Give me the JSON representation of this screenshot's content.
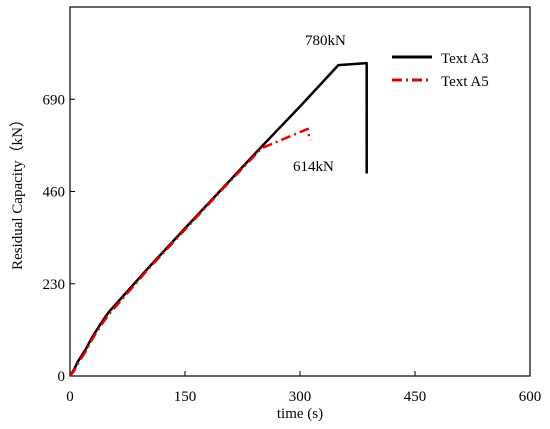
{
  "chart_data": {
    "type": "line",
    "title": "",
    "xlabel": "time (s)",
    "ylabel": "Residual Capacity（kN）",
    "xlim": [
      0,
      600
    ],
    "ylim": [
      0,
      920
    ],
    "xticks": [
      0,
      150,
      300,
      450,
      600
    ],
    "yticks": [
      0,
      230,
      460,
      690
    ],
    "grid": false,
    "legend_position": "top-right",
    "series": [
      {
        "name": "Text A3",
        "color": "#000000",
        "dash": "solid",
        "points": [
          [
            0,
            0
          ],
          [
            5,
            15
          ],
          [
            10,
            35
          ],
          [
            20,
            65
          ],
          [
            30,
            100
          ],
          [
            40,
            130
          ],
          [
            50,
            158
          ],
          [
            100,
            265
          ],
          [
            150,
            368
          ],
          [
            200,
            470
          ],
          [
            250,
            572
          ],
          [
            300,
            672
          ],
          [
            350,
            775
          ],
          [
            387,
            780
          ],
          [
            387,
            505
          ]
        ]
      },
      {
        "name": "Text A5",
        "color": "#e60000",
        "dash": "dashdot",
        "points": [
          [
            0,
            0
          ],
          [
            5,
            12
          ],
          [
            10,
            30
          ],
          [
            20,
            60
          ],
          [
            30,
            95
          ],
          [
            40,
            125
          ],
          [
            50,
            152
          ],
          [
            100,
            262
          ],
          [
            150,
            365
          ],
          [
            200,
            468
          ],
          [
            250,
            568
          ],
          [
            300,
            608
          ],
          [
            310,
            616
          ],
          [
            312,
            595
          ],
          [
            314,
            588
          ]
        ]
      }
    ],
    "annotations": [
      {
        "text": "780kN",
        "x": 320,
        "y": 810
      },
      {
        "text": "614kN",
        "x": 290,
        "y": 510
      }
    ]
  }
}
